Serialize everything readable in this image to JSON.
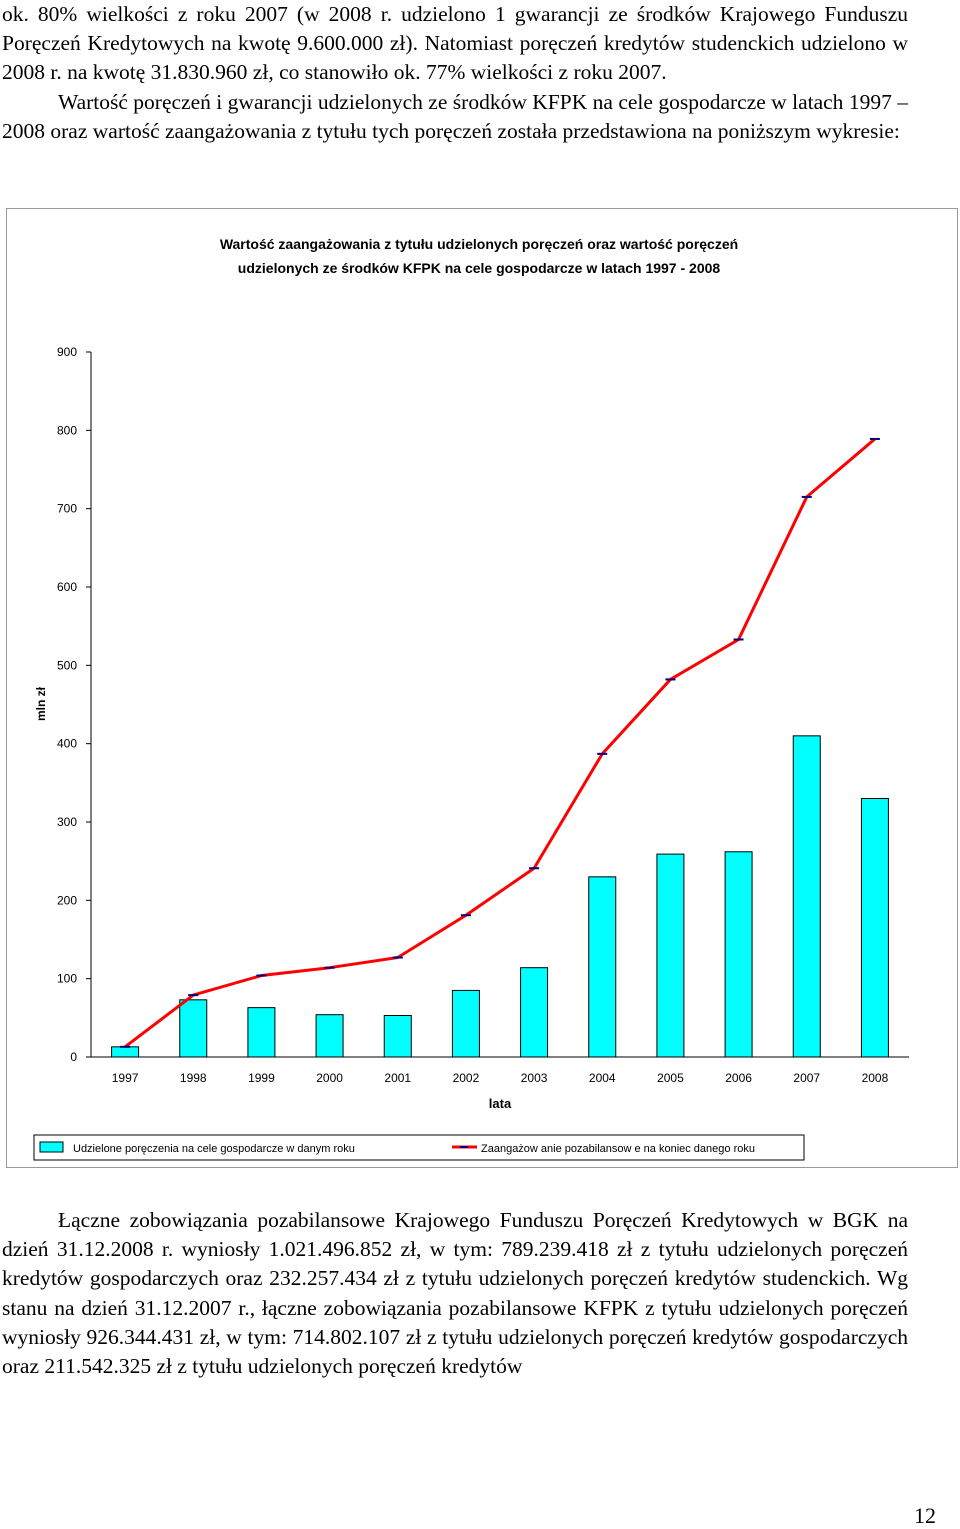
{
  "text_top": {
    "continuation": "ok. 80% wielkości z roku 2007 (w 2008 r. udzielono 1 gwarancji ze środków Krajowego Funduszu Poręczeń Kredytowych na kwotę 9.600.000 zł). Natomiast poręczeń kredytów studenckich udzielono w 2008 r. na kwotę 31.830.960 zł, co stanowiło ok. 77% wielkości z roku 2007.",
    "intro": "Wartość poręczeń i gwarancji udzielonych ze środków KFPK na cele gospodarcze w latach 1997 – 2008 oraz wartość zaangażowania z tytułu tych poręczeń została przedstawiona na poniższym wykresie:"
  },
  "chart_data": {
    "type": "bar",
    "title": "Wartość zaangażowania z tytułu udzielonych poręczeń oraz wartość poręczeń udzielonych ze środków KFPK na cele gospodarcze w latach 1997 - 2008",
    "xlabel": "lata",
    "ylabel": "mln zł",
    "ylim": [
      0,
      900
    ],
    "yticks": [
      0,
      100,
      200,
      300,
      400,
      500,
      600,
      700,
      800,
      900
    ],
    "grid": false,
    "legend_position": "bottom",
    "categories": [
      "1997",
      "1998",
      "1999",
      "2000",
      "2001",
      "2002",
      "2003",
      "2004",
      "2005",
      "2006",
      "2007",
      "2008"
    ],
    "series": [
      {
        "name": "Udzielone poręczenia na cele gospodarcze w danym roku",
        "type": "bar",
        "color": "#00ffff",
        "values": [
          13,
          73,
          63,
          54,
          53,
          85,
          114,
          230,
          259,
          262,
          410,
          330
        ]
      },
      {
        "name": "Zaangażow anie pozabilansow e na koniec danego roku",
        "type": "line",
        "color": "#ff0000",
        "marker_color": "#000080",
        "values": [
          13,
          79,
          104,
          114,
          127,
          181,
          241,
          387,
          482,
          533,
          715,
          789
        ]
      }
    ]
  },
  "text_bottom": {
    "summary": "Łączne zobowiązania pozabilansowe Krajowego Funduszu Poręczeń Kredytowych w BGK na dzień 31.12.2008 r. wyniosły 1.021.496.852 zł, w tym: 789.239.418 zł z tytułu udzielonych poręczeń kredytów gospodarczych oraz 232.257.434 zł z tytułu udzielonych poręczeń kredytów studenckich. Wg stanu na dzień 31.12.2007 r., łączne zobowiązania pozabilansowe KFPK z tytułu udzielonych poręczeń wyniosły 926.344.431 zł, w tym: 714.802.107 zł z tytułu udzielonych poręczeń kredytów gospodarczych oraz 211.542.325 zł z tytułu udzielonych poręczeń kredytów"
  },
  "page_number": "12"
}
